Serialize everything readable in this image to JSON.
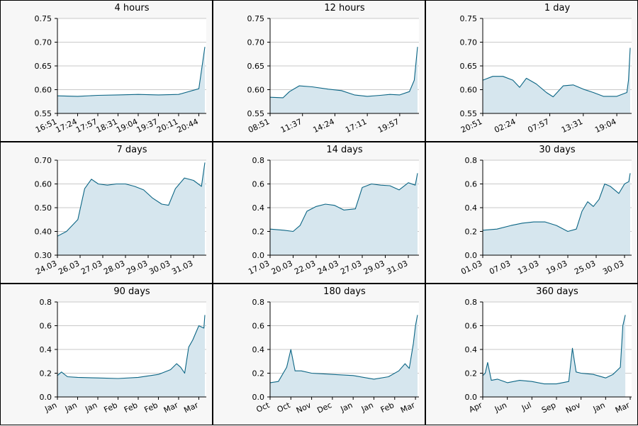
{
  "colors": {
    "line": "#0b6584",
    "fill": "#d6e6ee",
    "plot_bg": "#ffffff",
    "grid": "#c9c9c9",
    "panel_bg": "#f7f7f7"
  },
  "chart_data": [
    {
      "type": "area",
      "title": "4 hours",
      "xlabel": "",
      "ylabel": "",
      "ylim": [
        0.55,
        0.75
      ],
      "grid": true,
      "yticks": [
        "0.55",
        "0.60",
        "0.65",
        "0.70",
        "0.75"
      ],
      "xticks": [
        "16:51",
        "17:24",
        "17:57",
        "18:31",
        "19:04",
        "19:37",
        "20:11",
        "20:44"
      ],
      "x": [
        0,
        1,
        2,
        3,
        4,
        5,
        6,
        7,
        7.3
      ],
      "values": [
        0.587,
        0.586,
        0.588,
        0.589,
        0.59,
        0.589,
        0.59,
        0.602,
        0.69
      ]
    },
    {
      "type": "area",
      "title": "12 hours",
      "xlabel": "",
      "ylabel": "",
      "ylim": [
        0.55,
        0.75
      ],
      "grid": true,
      "yticks": [
        "0.55",
        "0.60",
        "0.65",
        "0.70",
        "0.75"
      ],
      "xticks": [
        "08:51",
        "11:37",
        "14:24",
        "17:11",
        "19:57"
      ],
      "x": [
        0,
        0.4,
        0.6,
        0.9,
        1.3,
        1.8,
        2.2,
        2.6,
        3.0,
        3.4,
        3.7,
        4.0,
        4.3,
        4.45,
        4.55
      ],
      "values": [
        0.584,
        0.583,
        0.596,
        0.608,
        0.606,
        0.601,
        0.598,
        0.589,
        0.586,
        0.588,
        0.59,
        0.589,
        0.596,
        0.62,
        0.69
      ]
    },
    {
      "type": "area",
      "title": "1 day",
      "xlabel": "",
      "ylabel": "",
      "ylim": [
        0.55,
        0.75
      ],
      "grid": true,
      "yticks": [
        "0.55",
        "0.60",
        "0.65",
        "0.70",
        "0.75"
      ],
      "xticks": [
        "20:51",
        "02:24",
        "07:57",
        "13:31",
        "19:04"
      ],
      "x": [
        0,
        0.3,
        0.6,
        0.9,
        1.1,
        1.3,
        1.6,
        1.9,
        2.1,
        2.4,
        2.7,
        3.0,
        3.3,
        3.6,
        4.0,
        4.3,
        4.35,
        4.4
      ],
      "values": [
        0.62,
        0.628,
        0.628,
        0.62,
        0.605,
        0.624,
        0.612,
        0.594,
        0.585,
        0.608,
        0.61,
        0.601,
        0.594,
        0.586,
        0.586,
        0.594,
        0.62,
        0.688
      ]
    },
    {
      "type": "area",
      "title": "7 days",
      "xlabel": "",
      "ylabel": "",
      "ylim": [
        0.3,
        0.7
      ],
      "grid": true,
      "yticks": [
        "0.30",
        "0.40",
        "0.50",
        "0.60",
        "0.70"
      ],
      "xticks": [
        "24.03",
        "26.03",
        "27.03",
        "28.03",
        "29.03",
        "30.03",
        "31.03"
      ],
      "x": [
        0,
        0.4,
        0.9,
        1.2,
        1.5,
        1.8,
        2.2,
        2.6,
        3.0,
        3.4,
        3.8,
        4.2,
        4.6,
        4.9,
        5.2,
        5.6,
        6.0,
        6.35,
        6.5
      ],
      "values": [
        0.38,
        0.4,
        0.45,
        0.58,
        0.62,
        0.6,
        0.595,
        0.6,
        0.6,
        0.59,
        0.575,
        0.54,
        0.515,
        0.51,
        0.58,
        0.625,
        0.615,
        0.59,
        0.69
      ]
    },
    {
      "type": "area",
      "title": "14 days",
      "xlabel": "",
      "ylabel": "",
      "ylim": [
        0.0,
        0.8
      ],
      "grid": true,
      "yticks": [
        "0.0",
        "0.2",
        "0.4",
        "0.6",
        "0.8"
      ],
      "xticks": [
        "17.03",
        "20.03",
        "22.03",
        "24.03",
        "27.03",
        "29.03",
        "31.03"
      ],
      "x": [
        0,
        0.6,
        1.0,
        1.3,
        1.6,
        2.0,
        2.4,
        2.8,
        3.2,
        3.7,
        4.0,
        4.4,
        4.8,
        5.2,
        5.6,
        6.0,
        6.3,
        6.4
      ],
      "values": [
        0.22,
        0.21,
        0.2,
        0.25,
        0.37,
        0.41,
        0.43,
        0.42,
        0.38,
        0.39,
        0.57,
        0.6,
        0.59,
        0.585,
        0.55,
        0.61,
        0.59,
        0.69
      ]
    },
    {
      "type": "area",
      "title": "30 days",
      "xlabel": "",
      "ylabel": "",
      "ylim": [
        0.0,
        0.8
      ],
      "grid": true,
      "yticks": [
        "0.0",
        "0.2",
        "0.4",
        "0.6",
        "0.8"
      ],
      "xticks": [
        "01.03",
        "07.03",
        "13.03",
        "19.03",
        "25.03",
        "30.03"
      ],
      "x": [
        0,
        0.5,
        1.0,
        1.4,
        1.8,
        2.2,
        2.6,
        3.0,
        3.3,
        3.5,
        3.7,
        3.9,
        4.1,
        4.3,
        4.5,
        4.8,
        5.0,
        5.15,
        5.2
      ],
      "values": [
        0.21,
        0.22,
        0.25,
        0.27,
        0.28,
        0.28,
        0.25,
        0.2,
        0.22,
        0.37,
        0.45,
        0.41,
        0.47,
        0.6,
        0.58,
        0.52,
        0.6,
        0.62,
        0.69
      ]
    },
    {
      "type": "area",
      "title": "90 days",
      "xlabel": "",
      "ylabel": "",
      "ylim": [
        0.0,
        0.8
      ],
      "grid": true,
      "yticks": [
        "0.0",
        "0.2",
        "0.4",
        "0.6",
        "0.8"
      ],
      "xticks": [
        "Jan",
        "Jan",
        "Jan",
        "Feb",
        "Feb",
        "Feb",
        "Mar",
        "Mar"
      ],
      "x": [
        0,
        0.2,
        0.5,
        1.0,
        2.0,
        3.0,
        4.0,
        5.0,
        5.6,
        5.9,
        6.1,
        6.3,
        6.5,
        6.7,
        7.0,
        7.25,
        7.3
      ],
      "values": [
        0.18,
        0.21,
        0.17,
        0.165,
        0.16,
        0.155,
        0.165,
        0.19,
        0.23,
        0.28,
        0.25,
        0.2,
        0.42,
        0.48,
        0.6,
        0.58,
        0.69
      ]
    },
    {
      "type": "area",
      "title": "180 days",
      "xlabel": "",
      "ylabel": "",
      "ylim": [
        0.0,
        0.8
      ],
      "grid": true,
      "yticks": [
        "0.0",
        "0.2",
        "0.4",
        "0.6",
        "0.8"
      ],
      "xticks": [
        "Oct",
        "Oct",
        "Nov",
        "Dec",
        "Jan",
        "Jan",
        "Feb",
        "Mar"
      ],
      "x": [
        0,
        0.4,
        0.8,
        1.0,
        1.2,
        1.5,
        2.0,
        3.0,
        4.0,
        5.0,
        5.7,
        6.2,
        6.5,
        6.7,
        6.9,
        7.0,
        7.1
      ],
      "values": [
        0.12,
        0.13,
        0.25,
        0.4,
        0.22,
        0.22,
        0.2,
        0.19,
        0.18,
        0.15,
        0.17,
        0.22,
        0.28,
        0.24,
        0.45,
        0.6,
        0.69
      ]
    },
    {
      "type": "area",
      "title": "360 days",
      "xlabel": "",
      "ylabel": "",
      "ylim": [
        0.0,
        0.8
      ],
      "grid": true,
      "yticks": [
        "0.0",
        "0.2",
        "0.4",
        "0.6",
        "0.8"
      ],
      "xticks": [
        "Apr",
        "Jun",
        "Jul",
        "Sep",
        "Nov",
        "Jan",
        "Mar"
      ],
      "x": [
        0,
        0.1,
        0.2,
        0.35,
        0.6,
        1.0,
        1.5,
        2.0,
        2.5,
        3.0,
        3.5,
        3.65,
        3.8,
        4.0,
        4.5,
        5.0,
        5.3,
        5.6,
        5.7,
        5.8
      ],
      "values": [
        0.18,
        0.2,
        0.29,
        0.14,
        0.15,
        0.12,
        0.14,
        0.13,
        0.11,
        0.11,
        0.13,
        0.41,
        0.21,
        0.2,
        0.19,
        0.16,
        0.19,
        0.25,
        0.6,
        0.69
      ]
    }
  ]
}
